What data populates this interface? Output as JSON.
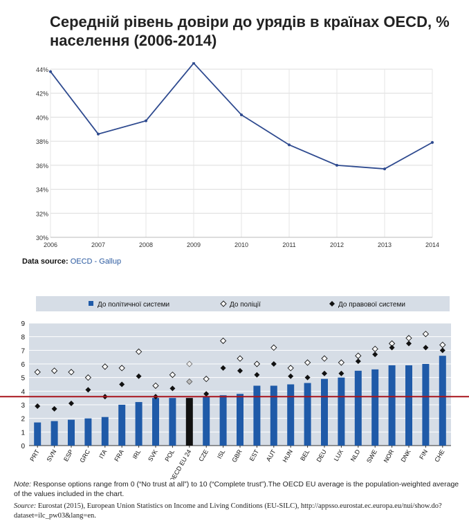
{
  "header": {
    "title": "Середній рівень довіри до урядів в країнах OECD, % населення (2006-2014)"
  },
  "source": {
    "label": "Data source:",
    "link": "OECD - Gallup"
  },
  "legend": {
    "political": "До політичної системи",
    "police": "До поліції",
    "legal": "До правової системи"
  },
  "footnote": {
    "note_label": "Note:",
    "note_text": " Response options range from 0 (“No trust at all”) to 10 (“Complete trust”).The OECD EU average is the population-weighted average of the values included in the chart.",
    "source_label": "Source:",
    "source_text": " Eurostat (2015), European Union Statistics on Income and Living Conditions (EU-SILC), http://appsso.eurostat.ec.europa.eu/nui/show.do?dataset=ilc_pw03&lang=en."
  },
  "colors": {
    "line": "#2e4a8f",
    "bar": "#1f5aa8",
    "bar_highlight": "#111111",
    "panel": "#d6dde6",
    "redline": "#a8141c"
  },
  "chart_data": [
    {
      "type": "line",
      "title": "Середній рівень довіри до урядів в країнах OECD, % населення (2006-2014)",
      "x": [
        "2006",
        "2007",
        "2008",
        "2009",
        "2010",
        "2011",
        "2012",
        "2013",
        "2014"
      ],
      "values": [
        43.8,
        38.6,
        39.7,
        44.5,
        40.2,
        37.7,
        36.0,
        35.7,
        37.9
      ],
      "ylim": [
        30,
        44
      ],
      "yticks": [
        30,
        32,
        34,
        36,
        38,
        40,
        42,
        44
      ],
      "ytick_labels": [
        "30%",
        "32%",
        "34%",
        "36%",
        "38%",
        "40%",
        "42%",
        "44%"
      ],
      "grid": true
    },
    {
      "type": "bar",
      "categories": [
        "PRT",
        "SVN",
        "ESP",
        "GRC",
        "ITA",
        "FRA",
        "IRL",
        "SVK",
        "POL",
        "OECD EU 24",
        "CZE",
        "ISL",
        "GBR",
        "EST",
        "AUT",
        "HUN",
        "BEL",
        "DEU",
        "LUX",
        "NLD",
        "SWE",
        "NOR",
        "DNK",
        "FIN",
        "CHE"
      ],
      "highlight": "OECD EU 24",
      "series": [
        {
          "name": "До політичної системи",
          "kind": "bar",
          "values": [
            1.7,
            1.8,
            1.9,
            2.0,
            2.1,
            3.0,
            3.2,
            3.5,
            3.5,
            3.5,
            3.6,
            3.7,
            3.8,
            4.4,
            4.4,
            4.5,
            4.6,
            4.9,
            5.0,
            5.5,
            5.6,
            5.9,
            5.9,
            6.0,
            6.6
          ]
        },
        {
          "name": "До поліції",
          "kind": "open-diamond",
          "values": [
            5.4,
            5.5,
            5.4,
            5.0,
            5.8,
            5.7,
            6.9,
            4.4,
            5.2,
            6.0,
            4.9,
            7.7,
            6.4,
            6.0,
            7.2,
            5.7,
            6.1,
            6.4,
            6.1,
            6.6,
            7.1,
            7.5,
            7.9,
            8.2,
            7.4
          ]
        },
        {
          "name": "До правової системи",
          "kind": "filled-diamond",
          "values": [
            2.9,
            2.7,
            3.1,
            4.1,
            3.6,
            4.5,
            5.1,
            3.6,
            4.2,
            4.7,
            3.8,
            5.7,
            5.5,
            5.2,
            6.0,
            5.1,
            5.0,
            5.3,
            5.3,
            6.2,
            6.7,
            7.2,
            7.5,
            7.2,
            7.0
          ]
        }
      ],
      "reference_line": 3.6,
      "ylim": [
        0,
        9
      ],
      "yticks": [
        0,
        1,
        2,
        3,
        4,
        5,
        6,
        7,
        8,
        9
      ],
      "grid": true
    }
  ]
}
